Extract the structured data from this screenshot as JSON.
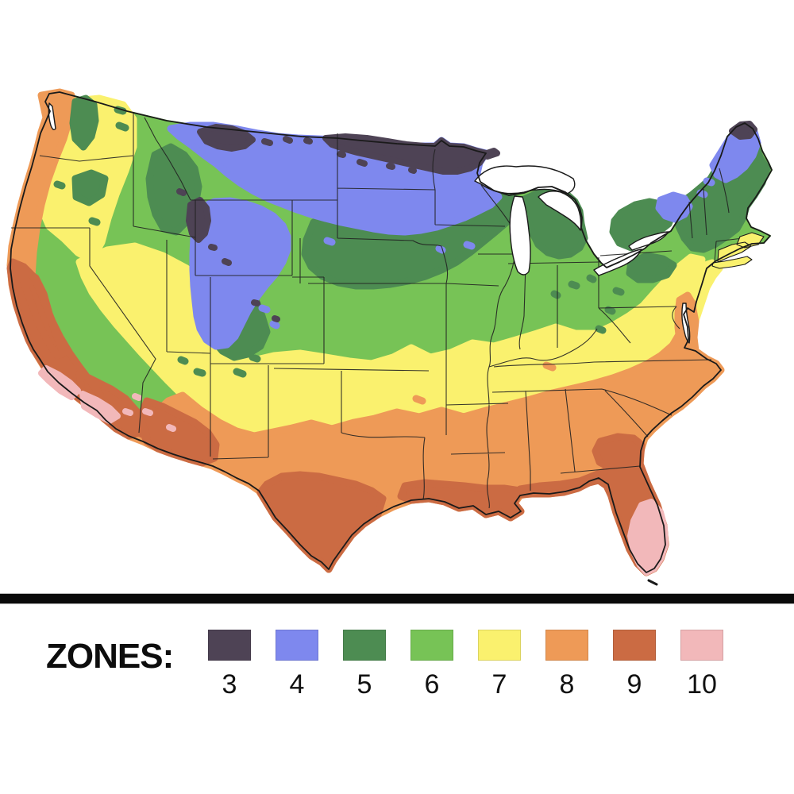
{
  "page": {
    "background_color": "#ffffff"
  },
  "map": {
    "name": "USDA plant hardiness zones map of the contiguous United States",
    "outline_color": "#1a1a1a",
    "state_border_color": "#212121",
    "water_color": "#ffffff",
    "divider_color": "#0a0a0a"
  },
  "legend": {
    "title": "ZONES:",
    "zones": [
      {
        "label": "3",
        "color": "#4e4355"
      },
      {
        "label": "4",
        "color": "#7e88ee"
      },
      {
        "label": "5",
        "color": "#4d8c52"
      },
      {
        "label": "6",
        "color": "#77c356"
      },
      {
        "label": "7",
        "color": "#faf16e"
      },
      {
        "label": "8",
        "color": "#ee9a57"
      },
      {
        "label": "9",
        "color": "#cb6b43"
      },
      {
        "label": "10",
        "color": "#f2b8ba"
      }
    ]
  }
}
